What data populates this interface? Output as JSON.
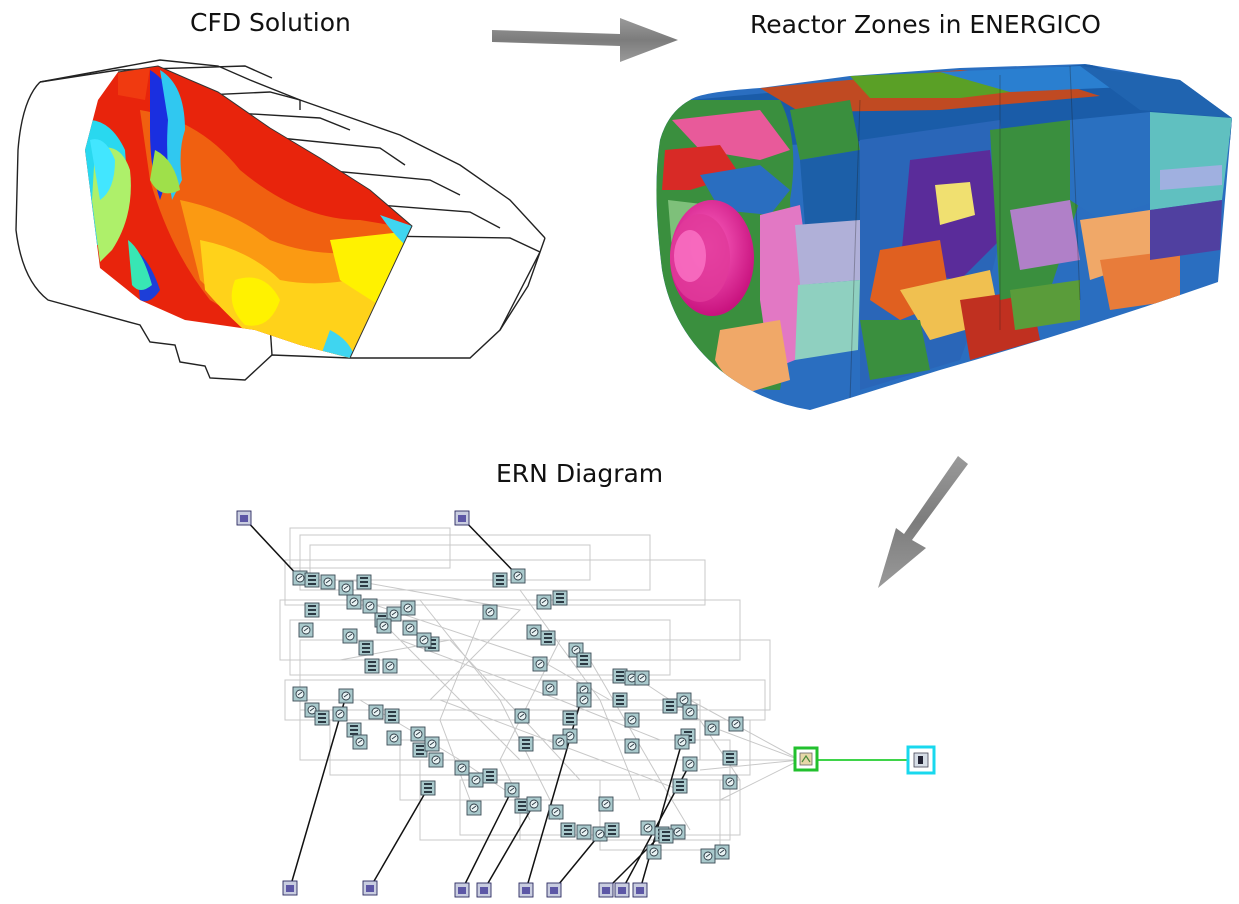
{
  "titles": {
    "cfd": "CFD Solution",
    "zones": "Reactor Zones in ENERGICO",
    "ern": "ERN Diagram"
  },
  "icons": [
    "right-arrow-icon",
    "down-left-arrow-icon",
    "reactor-node-icon",
    "inlet-node-icon",
    "mixer-node-icon",
    "outlet-node-icon"
  ],
  "colors": {
    "arrow": "#8a8a8a",
    "ern_lines": "#c8c8c8",
    "mixer_border": "#22c02e",
    "outlet_border": "#18d8ee",
    "node_fill": "#a9c9cc",
    "inlet_fill": "#5d57a6",
    "link_green": "#3fd44a"
  }
}
